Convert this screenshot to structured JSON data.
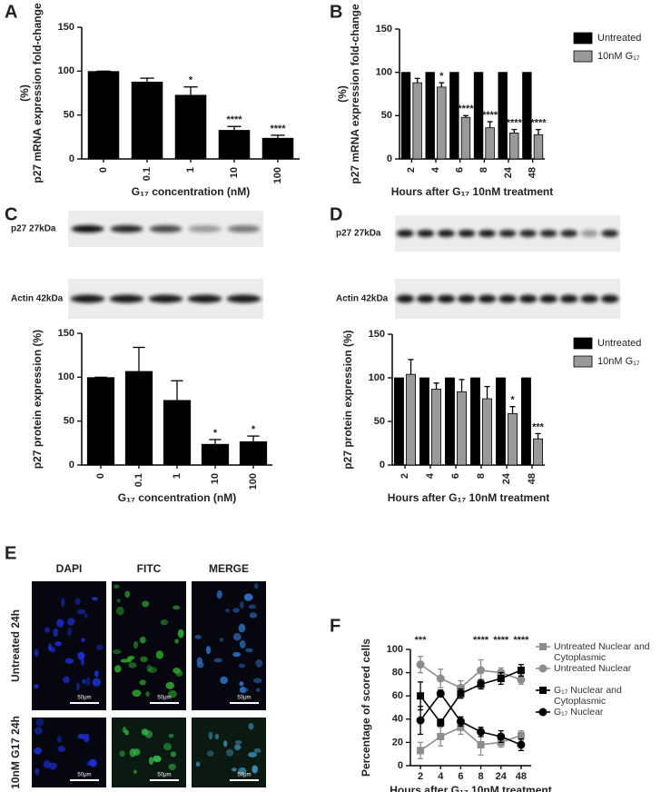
{
  "chart_data": [
    {
      "type": "bar",
      "panel": "A",
      "y_label": [
        "p27 mRNA expression fold-change",
        "(%)"
      ],
      "x_label": "G₁₇ concentration (nM)",
      "categories": [
        "0",
        "0.1",
        "1",
        "10",
        "100"
      ],
      "values": [
        100,
        88,
        73,
        33,
        24
      ],
      "errors": [
        0,
        4,
        9,
        4,
        3
      ],
      "color": "#000000",
      "annotations": [
        {
          "at": "1",
          "text": "*"
        },
        {
          "at": "10",
          "text": "****"
        },
        {
          "at": "100",
          "text": "****"
        }
      ],
      "ylim": [
        0,
        150
      ],
      "yticks": [
        0,
        50,
        100,
        150
      ]
    },
    {
      "type": "grouped_bar",
      "panel": "B",
      "y_label": [
        "p27 mRNA expression fold-change",
        "(%)"
      ],
      "x_label": "Hours after G₁₇ 10nM treatment",
      "categories": [
        "2",
        "4",
        "6",
        "8",
        "24",
        "48"
      ],
      "series": [
        {
          "name": "Untreated",
          "color": "#000000",
          "values": [
            100,
            100,
            100,
            100,
            100,
            100
          ]
        },
        {
          "name": "10nM G₁₇",
          "color": "#999999",
          "values": [
            88,
            83,
            48,
            36,
            30,
            28
          ],
          "errors": [
            5,
            5,
            2,
            7,
            4,
            6
          ]
        }
      ],
      "annotations": [
        {
          "at": "4",
          "text": "*"
        },
        {
          "at": "6",
          "text": "****"
        },
        {
          "at": "8",
          "text": "****"
        },
        {
          "at": "24",
          "text": "****"
        },
        {
          "at": "48",
          "text": "****"
        }
      ],
      "legend": "right",
      "ylim": [
        0,
        150
      ],
      "yticks": [
        0,
        50,
        100,
        150
      ]
    },
    {
      "type": "bar",
      "panel": "C",
      "blot_labels": [
        "p27 27kDa",
        "Actin 42kDa"
      ],
      "y_label": [
        "p27 protein expression (%)"
      ],
      "x_label": "G₁₇ concentration (nM)",
      "categories": [
        "0",
        "0.1",
        "1",
        "10",
        "100"
      ],
      "values": [
        100,
        107,
        74,
        24,
        27
      ],
      "errors": [
        0,
        27,
        22,
        5,
        6
      ],
      "color": "#000000",
      "annotations": [
        {
          "at": "10",
          "text": "*"
        },
        {
          "at": "100",
          "text": "*"
        }
      ],
      "ylim": [
        0,
        150
      ],
      "yticks": [
        0,
        50,
        100,
        150
      ]
    },
    {
      "type": "grouped_bar",
      "panel": "D",
      "blot_labels": [
        "p27 27kDa",
        "Actin 42kDa"
      ],
      "y_label": [
        "p27 protein expression (%)"
      ],
      "x_label": "Hours after G₁₇ 10nM treatment",
      "categories": [
        "2",
        "4",
        "6",
        "8",
        "24",
        "48"
      ],
      "series": [
        {
          "name": "Untreated",
          "color": "#000000",
          "values": [
            100,
            100,
            100,
            100,
            100,
            100
          ]
        },
        {
          "name": "10nM G₁₇",
          "color": "#999999",
          "values": [
            104,
            87,
            84,
            76,
            59,
            30
          ],
          "errors": [
            17,
            7,
            14,
            14,
            8,
            6
          ]
        }
      ],
      "annotations": [
        {
          "at": "24",
          "text": "*"
        },
        {
          "at": "48",
          "text": "***"
        }
      ],
      "legend": "right",
      "ylim": [
        0,
        150
      ],
      "yticks": [
        0,
        50,
        100,
        150
      ]
    },
    {
      "type": "line",
      "panel": "F",
      "y_label": [
        "Percentage of scored cells"
      ],
      "x_label": "Hours after G₁₇ 10nM treatment",
      "categories": [
        "2",
        "4",
        "6",
        "8",
        "24",
        "48"
      ],
      "series": [
        {
          "name": "Untreated Nuclear and Cytoplasmic",
          "color": "#8c8c8c",
          "marker": "square",
          "values": [
            13,
            25,
            33,
            18,
            20,
            26
          ],
          "errors": [
            7,
            8,
            6,
            9,
            4,
            4
          ]
        },
        {
          "name": "Untreated Nuclear",
          "color": "#8c8c8c",
          "marker": "circle",
          "values": [
            87,
            75,
            67,
            82,
            80,
            74
          ],
          "errors": [
            7,
            8,
            6,
            9,
            4,
            4
          ]
        },
        {
          "name": "G₁₇ Nuclear and Cytoplasmic",
          "color": "#000000",
          "marker": "square",
          "values": [
            60,
            37,
            62,
            70,
            75,
            82
          ],
          "errors": [
            12,
            3,
            4,
            4,
            5,
            5
          ]
        },
        {
          "name": "G₁₇ Nuclear",
          "color": "#000000",
          "marker": "circle",
          "values": [
            39,
            62,
            38,
            29,
            25,
            18
          ],
          "errors": [
            12,
            3,
            4,
            4,
            5,
            5
          ]
        }
      ],
      "annotations": [
        {
          "at": "2",
          "text": "***"
        },
        {
          "at": "8",
          "text": "****"
        },
        {
          "at": "24",
          "text": "****"
        },
        {
          "at": "48",
          "text": "****"
        }
      ],
      "legend": "right",
      "ylim": [
        0,
        100
      ],
      "yticks": [
        0,
        20,
        40,
        60,
        80,
        100
      ]
    }
  ],
  "panel_e": {
    "panel": "E",
    "columns": [
      "DAPI",
      "FITC",
      "MERGE"
    ],
    "rows": [
      "Untreated 24h",
      "10nM G17 24h"
    ],
    "scale_bar": "50μm"
  }
}
